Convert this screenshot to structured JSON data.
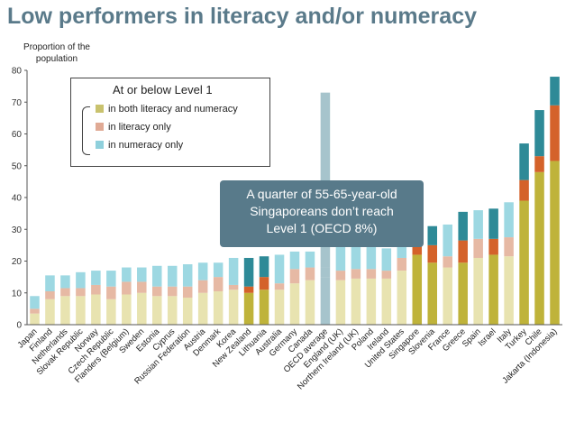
{
  "title": "Low performers in literacy and/or numeracy",
  "legend": {
    "title": "At or below Level 1",
    "items": [
      "in both literacy and numeracy",
      "in literacy only",
      "in numeracy only"
    ]
  },
  "callout": {
    "lines": [
      "A quarter of 55-65-year-old",
      "Singaporeans don’t reach",
      "Level 1 (OECD 8%)"
    ]
  },
  "colors": {
    "light": [
      "#e8e3b0",
      "#e6b9a4",
      "#9dd8e2"
    ],
    "dark": [
      "#bfb33a",
      "#d4622a",
      "#2e8a97"
    ],
    "highlight": "#a6c4cc",
    "axis": "#555555"
  },
  "chart_data": {
    "type": "bar",
    "stacked": true,
    "ylabel": "Proportion of the population",
    "ylim": [
      0,
      80
    ],
    "yticks": [
      0,
      10,
      20,
      30,
      40,
      50,
      60,
      70,
      80
    ],
    "grid": false,
    "legend_position": "top-left",
    "categories": [
      "Japan",
      "Finland",
      "Netherlands",
      "Slovak Republic",
      "Norway",
      "Czech Republic",
      "Flanders (Belgium)",
      "Sweden",
      "Estonia",
      "Cyprus",
      "Russian Federation",
      "Austria",
      "Denmark",
      "Korea",
      "New Zealand",
      "Lithuania",
      "Australia",
      "Germany",
      "Canada",
      "OECD average",
      "England (UK)",
      "Northern Ireland (UK)",
      "Poland",
      "Ireland",
      "United States",
      "Singapore",
      "Slovenia",
      "France",
      "Greece",
      "Spain",
      "Israel",
      "Italy",
      "Turkey",
      "Chile",
      "Jakarta (Indonesia)"
    ],
    "series": [
      {
        "name": "in both literacy and numeracy",
        "values": [
          3.5,
          8,
          9,
          9,
          9.5,
          8,
          9.5,
          10,
          9,
          9,
          8.5,
          10,
          10.5,
          11,
          10,
          11,
          11,
          13,
          14,
          15,
          14,
          14.5,
          14.5,
          14.5,
          17,
          22,
          19.5,
          18,
          19.5,
          21,
          22,
          21.5,
          39,
          48,
          51.5
        ]
      },
      {
        "name": "in literacy only",
        "values": [
          1.5,
          2.5,
          2.5,
          2.5,
          3,
          4,
          4,
          3.5,
          3,
          3,
          3.5,
          4,
          4.5,
          1.5,
          2,
          4,
          2,
          4.5,
          4,
          3,
          3,
          3,
          3,
          2.5,
          4,
          3,
          5.5,
          3.5,
          7,
          6,
          5,
          6,
          6.5,
          5,
          17.5
        ]
      },
      {
        "name": "in numeracy only",
        "values": [
          4,
          5,
          4,
          5,
          4.5,
          5,
          4.5,
          4.5,
          6.5,
          6.5,
          7,
          5.5,
          4.5,
          8.5,
          9,
          6.5,
          9,
          5.5,
          5,
          55,
          8.5,
          7,
          7,
          7,
          5,
          6,
          6,
          10,
          9,
          9,
          9.5,
          11,
          11.5,
          14.5,
          9
        ]
      }
    ],
    "dark_categories": [
      "New Zealand",
      "Lithuania",
      "Singapore",
      "Slovenia",
      "Greece",
      "Israel",
      "Turkey",
      "Chile",
      "Jakarta (Indonesia)"
    ],
    "highlight_category": "OECD average"
  }
}
